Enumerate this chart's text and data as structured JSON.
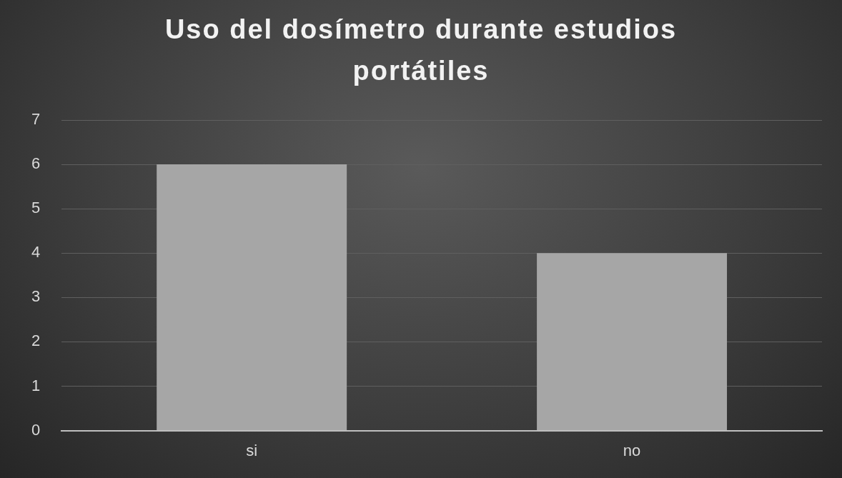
{
  "chart_data": {
    "type": "bar",
    "title": "Uso del dosímetro durante estudios portátiles",
    "categories": [
      "si",
      "no"
    ],
    "values": [
      6,
      4
    ],
    "color": "#a6a6a6",
    "ylim": [
      0,
      7
    ],
    "yticks": [
      0,
      1,
      2,
      3,
      4,
      5,
      6,
      7
    ],
    "grid": "y"
  }
}
